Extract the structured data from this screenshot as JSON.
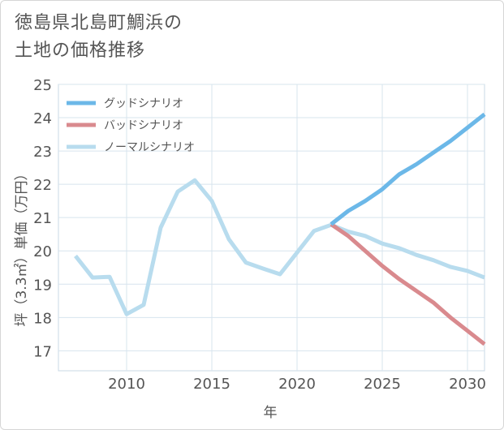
{
  "title": {
    "line1": "徳島県北島町鯛浜の",
    "line2": "土地の価格推移"
  },
  "chart_data": {
    "type": "line",
    "title": "徳島県北島町鯛浜の土地の価格推移",
    "xlabel": "年",
    "ylabel": "坪（3.3㎡）単価（万円）",
    "xlim": [
      2006,
      2031
    ],
    "ylim": [
      16.4,
      25
    ],
    "xticks": [
      2010,
      2015,
      2020,
      2025,
      2030
    ],
    "yticks": [
      17,
      18,
      19,
      20,
      21,
      22,
      23,
      24,
      25
    ],
    "grid": true,
    "legend_position": "top-left",
    "series": [
      {
        "name": "グッドシナリオ",
        "color": "#6cb8e8",
        "x": [
          2022,
          2023,
          2024,
          2025,
          2026,
          2027,
          2028,
          2029,
          2030,
          2031
        ],
        "y": [
          20.8,
          21.2,
          21.5,
          21.85,
          22.3,
          22.6,
          22.95,
          23.3,
          23.7,
          24.1
        ]
      },
      {
        "name": "バッドシナリオ",
        "color": "#d98a8e",
        "x": [
          2022,
          2023,
          2024,
          2025,
          2026,
          2027,
          2028,
          2029,
          2030,
          2031
        ],
        "y": [
          20.8,
          20.45,
          20.0,
          19.55,
          19.15,
          18.8,
          18.45,
          18.0,
          17.6,
          17.2
        ]
      },
      {
        "name": "ノーマルシナリオ",
        "color": "#b8dcee",
        "x": [
          2007,
          2008,
          2009,
          2010,
          2011,
          2012,
          2013,
          2014,
          2015,
          2016,
          2017,
          2018,
          2019,
          2020,
          2021,
          2022,
          2023,
          2024,
          2025,
          2026,
          2027,
          2028,
          2029,
          2030,
          2031
        ],
        "y": [
          19.85,
          19.2,
          19.22,
          18.1,
          18.38,
          20.7,
          21.78,
          22.12,
          21.5,
          20.35,
          19.65,
          19.47,
          19.3,
          19.95,
          20.6,
          20.78,
          20.58,
          20.45,
          20.22,
          20.08,
          19.88,
          19.72,
          19.52,
          19.4,
          19.2
        ]
      }
    ]
  }
}
